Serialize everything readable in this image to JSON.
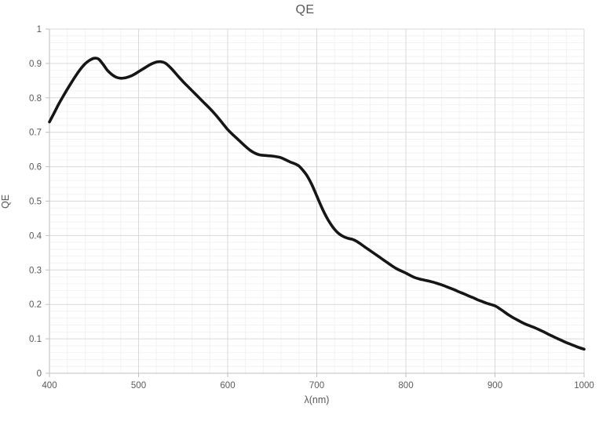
{
  "title": "QE",
  "colors": {
    "background": "#ffffff",
    "title_text": "#595959",
    "axis_text": "#595959",
    "major_grid": "#d9d9d9",
    "minor_grid": "#f2f2f2",
    "axis_line": "#bfbfbf",
    "series_line": "#161616"
  },
  "chart_data": {
    "type": "line",
    "title": "QE",
    "xlabel": "λ(nm)",
    "ylabel": "QE",
    "xlim": [
      400,
      1000
    ],
    "ylim": [
      0,
      1
    ],
    "x_major_ticks": [
      400,
      500,
      600,
      700,
      800,
      900,
      1000
    ],
    "y_major_ticks": [
      0,
      0.1,
      0.2,
      0.3,
      0.4,
      0.5,
      0.6,
      0.7,
      0.8,
      0.9,
      1
    ],
    "x_minor_step": 20,
    "y_minor_step": 0.02,
    "grid": "major+minor",
    "legend": "none",
    "series": [
      {
        "name": "QE",
        "x": [
          400,
          405,
          410,
          415,
          420,
          425,
          430,
          435,
          440,
          445,
          450,
          455,
          460,
          465,
          470,
          475,
          480,
          485,
          490,
          495,
          500,
          505,
          510,
          515,
          520,
          525,
          530,
          535,
          540,
          545,
          550,
          555,
          560,
          565,
          570,
          575,
          580,
          585,
          590,
          595,
          600,
          605,
          610,
          615,
          620,
          625,
          630,
          635,
          640,
          645,
          650,
          655,
          660,
          665,
          670,
          675,
          680,
          685,
          690,
          695,
          700,
          705,
          710,
          715,
          720,
          725,
          730,
          735,
          740,
          745,
          750,
          755,
          760,
          765,
          770,
          775,
          780,
          785,
          790,
          795,
          800,
          805,
          810,
          815,
          820,
          825,
          830,
          835,
          840,
          845,
          850,
          855,
          860,
          865,
          870,
          875,
          880,
          885,
          890,
          895,
          900,
          905,
          910,
          915,
          920,
          925,
          930,
          935,
          940,
          945,
          950,
          955,
          960,
          965,
          970,
          975,
          980,
          985,
          990,
          995,
          1000
        ],
        "y": [
          0.73,
          0.755,
          0.78,
          0.803,
          0.825,
          0.846,
          0.866,
          0.884,
          0.899,
          0.909,
          0.915,
          0.913,
          0.898,
          0.88,
          0.868,
          0.86,
          0.857,
          0.858,
          0.862,
          0.868,
          0.876,
          0.884,
          0.892,
          0.899,
          0.904,
          0.905,
          0.901,
          0.89,
          0.876,
          0.861,
          0.847,
          0.834,
          0.821,
          0.808,
          0.795,
          0.782,
          0.769,
          0.755,
          0.74,
          0.724,
          0.708,
          0.695,
          0.683,
          0.671,
          0.659,
          0.648,
          0.64,
          0.635,
          0.633,
          0.632,
          0.631,
          0.629,
          0.626,
          0.62,
          0.614,
          0.609,
          0.602,
          0.588,
          0.57,
          0.545,
          0.515,
          0.485,
          0.458,
          0.436,
          0.418,
          0.405,
          0.397,
          0.392,
          0.389,
          0.383,
          0.374,
          0.365,
          0.356,
          0.347,
          0.338,
          0.329,
          0.32,
          0.311,
          0.303,
          0.297,
          0.291,
          0.284,
          0.278,
          0.274,
          0.271,
          0.268,
          0.265,
          0.261,
          0.257,
          0.252,
          0.247,
          0.242,
          0.236,
          0.231,
          0.225,
          0.22,
          0.214,
          0.209,
          0.204,
          0.2,
          0.196,
          0.188,
          0.179,
          0.17,
          0.162,
          0.155,
          0.148,
          0.142,
          0.137,
          0.132,
          0.126,
          0.12,
          0.113,
          0.107,
          0.101,
          0.095,
          0.089,
          0.084,
          0.079,
          0.074,
          0.07
        ]
      }
    ]
  }
}
